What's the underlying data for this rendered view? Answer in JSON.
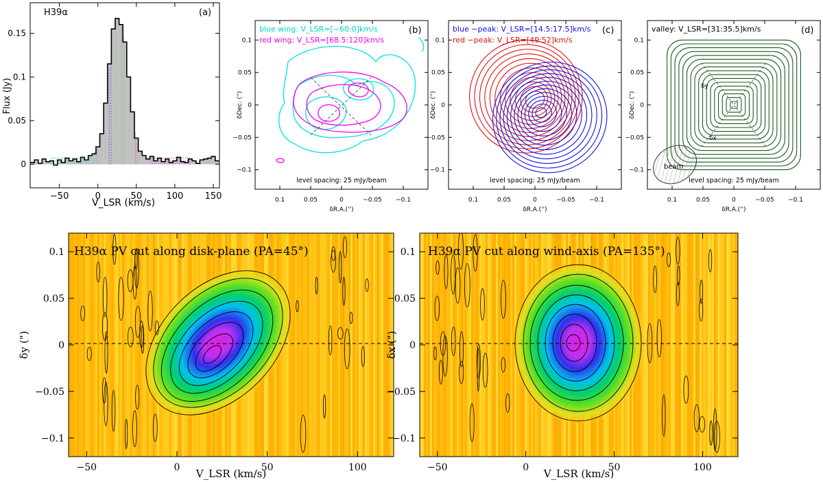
{
  "chart_data": [
    {
      "panel": "a",
      "type": "line",
      "label": "(a)",
      "line_name": "H39α",
      "xlabel": "V_LSR (km/s)",
      "ylabel": "Flux (Jy)",
      "xlim": [
        -88,
        158
      ],
      "ylim": [
        -0.027,
        0.185
      ],
      "xticks": [
        -50,
        0,
        50,
        100,
        150
      ],
      "yticks": [
        0,
        0.05,
        0.1,
        0.15
      ],
      "ytick_labels": [
        "0",
        "0.05",
        "0.1",
        "0.15"
      ],
      "velocity": [
        -85,
        -80,
        -75,
        -70,
        -65,
        -60,
        -55,
        -50,
        -45,
        -40,
        -35,
        -30,
        -25,
        -20,
        -15,
        -10,
        -5,
        0,
        5,
        10,
        15,
        20,
        25,
        30,
        35,
        40,
        45,
        50,
        55,
        60,
        65,
        70,
        75,
        80,
        85,
        90,
        95,
        100,
        105,
        110,
        115,
        120,
        125,
        130,
        135,
        140,
        145,
        150,
        155
      ],
      "flux": [
        0.002,
        0.005,
        0.001,
        0.006,
        0.003,
        0.004,
        -0.001,
        0.005,
        0.002,
        0.007,
        0.004,
        0.006,
        0.003,
        0.008,
        0.005,
        0.01,
        0.012,
        0.02,
        0.035,
        0.07,
        0.115,
        0.155,
        0.167,
        0.16,
        0.14,
        0.1,
        0.06,
        0.03,
        0.015,
        0.01,
        0.006,
        0.009,
        0.004,
        0.007,
        0.003,
        0.006,
        0.002,
        0.004,
        0.008,
        0.003,
        0.002,
        0.006,
        0.004,
        0.001,
        0.005,
        0.006,
        0.007,
        0.009,
        0.004
      ],
      "shaded_ranges": [
        {
          "name": "blue wing",
          "range": [
            -60,
            0
          ],
          "color": "#5ec8c8"
        },
        {
          "name": "blue peak",
          "range": [
            14.5,
            17.5
          ],
          "color": "#7070dd"
        },
        {
          "name": "valley",
          "range": [
            31,
            35.5
          ],
          "color": "#70c070"
        },
        {
          "name": "red peak",
          "range": [
            49,
            52
          ],
          "color": "#dd7070"
        },
        {
          "name": "red wing",
          "range": [
            68.5,
            120
          ],
          "color": "#d070d0"
        }
      ]
    },
    {
      "panel": "b",
      "type": "contour",
      "label": "(b)",
      "legend": [
        "blue wing: V_LSR=[−60:0]km/s",
        "red wing: V_LSR=[68.5:120]km/s"
      ],
      "level_spacing": "level spacing: 25 mJy/beam",
      "xlabel": "δR.A.('')",
      "ylabel": "δDec. ('')",
      "xlim": [
        0.14,
        -0.14
      ],
      "ylim": [
        -0.13,
        0.13
      ],
      "xticks": [
        0.1,
        0.05,
        0,
        -0.05,
        -0.1
      ],
      "yticks": [
        0.1,
        0.05,
        0,
        -0.05,
        -0.1
      ],
      "series": [
        {
          "name": "blue wing",
          "color": "#00e0e0"
        },
        {
          "name": "red wing",
          "color": "#ee00ee"
        }
      ]
    },
    {
      "panel": "c",
      "type": "contour",
      "label": "(c)",
      "legend": [
        "blue −peak: V_LSR=[14.5:17.5]km/s",
        "red −peak: V_LSR=[49:52]km/s"
      ],
      "level_spacing": "level spacing: 25 mJy/beam",
      "xlabel": "δR.A.('')",
      "ylabel": "δDec. ('')",
      "xlim": [
        0.14,
        -0.14
      ],
      "ylim": [
        -0.13,
        0.13
      ],
      "xticks": [
        0.1,
        0.05,
        0,
        -0.05,
        -0.1
      ],
      "yticks": [
        0.1,
        0.05,
        0,
        -0.05,
        -0.1
      ],
      "series": [
        {
          "name": "blue peak",
          "color": "#1010e0"
        },
        {
          "name": "red peak",
          "color": "#e01010"
        }
      ]
    },
    {
      "panel": "d",
      "type": "contour",
      "label": "(d)",
      "legend": [
        "valley: V_LSR=[31:35.5]km/s"
      ],
      "level_spacing": "level spacing: 25 mJy/beam",
      "beam_label": "beam",
      "axis_labels": [
        "δy",
        "δx"
      ],
      "xlabel": "δR.A.('')",
      "ylabel": "δDec. ('')",
      "xlim": [
        0.14,
        -0.14
      ],
      "ylim": [
        -0.13,
        0.13
      ],
      "xticks": [
        0.1,
        0.05,
        0,
        -0.05,
        -0.1
      ],
      "yticks": [
        0.1,
        0.05,
        0,
        -0.05,
        -0.1
      ],
      "series": [
        {
          "name": "valley",
          "color": "#1e5a1e"
        }
      ]
    },
    {
      "panel": "pv1",
      "type": "heatmap",
      "title": "H39α PV cut along disk-plane (PA=45°)",
      "xlabel": "V_LSR (km/s)",
      "ylabel": "δy (\")",
      "xlim": [
        -60,
        120
      ],
      "ylim": [
        -0.12,
        0.12
      ],
      "xticks": [
        -50,
        0,
        50,
        100
      ],
      "yticks": [
        0.1,
        0.05,
        0,
        -0.05,
        -0.1
      ],
      "peak": {
        "v": 27,
        "offset": -0.01
      },
      "tilt_deg": 45
    },
    {
      "panel": "pv2",
      "type": "heatmap",
      "title": "H39α PV cut along wind-axis (PA=135°)",
      "xlabel": "V_LSR (km/s)",
      "ylabel": "δx (\")",
      "xlim": [
        -60,
        120
      ],
      "ylim": [
        -0.12,
        0.12
      ],
      "xticks": [
        -50,
        0,
        50,
        100
      ],
      "yticks": [
        0.1,
        0.05,
        0,
        -0.05,
        -0.1
      ],
      "peak": {
        "v": 30,
        "offset": 0.0
      },
      "tilt_deg": 0
    }
  ]
}
